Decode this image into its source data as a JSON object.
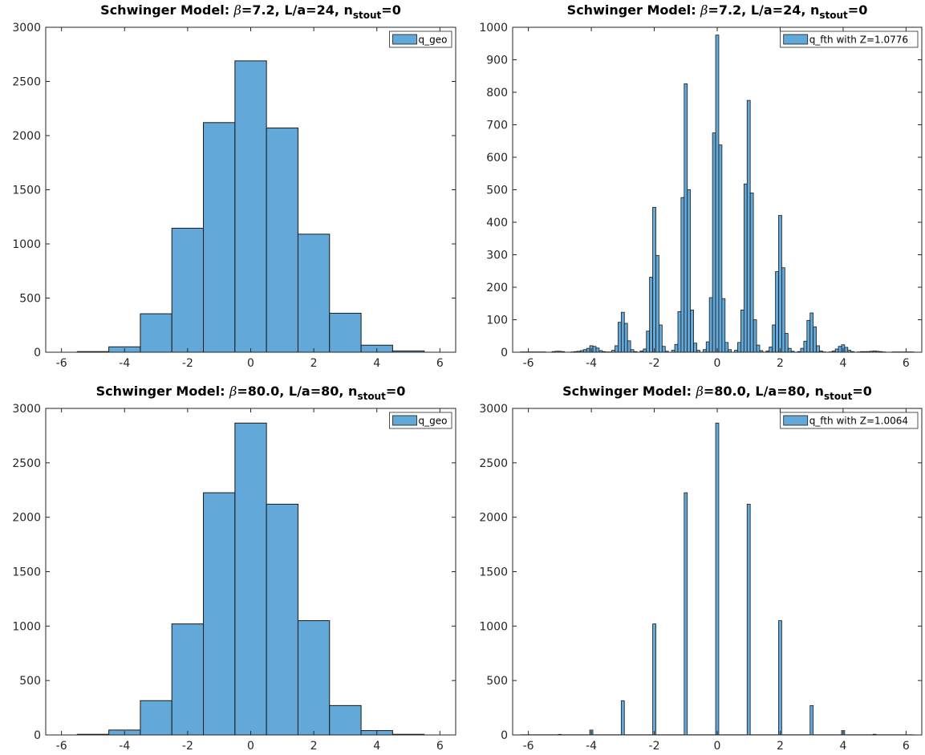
{
  "colors": {
    "bar_fill": "#62A8D8",
    "bar_edge": "#1a1a1a",
    "axis": "#262626",
    "background": "#ffffff"
  },
  "chart_data": [
    {
      "type": "bar",
      "title": {
        "prefix": "Schwinger Model: ",
        "greek": "β",
        "mid": "=7.2, L/a=24, n",
        "sub": "stout",
        "suffix": "=0"
      },
      "legend": "q_geo",
      "legend_position": "top-right",
      "xlim": [
        -6.5,
        6.5
      ],
      "ylim": [
        0,
        3000
      ],
      "xticks": [
        -6,
        -4,
        -2,
        0,
        2,
        4,
        6
      ],
      "yticks": [
        0,
        500,
        1000,
        1500,
        2000,
        2500,
        3000
      ],
      "bin_width": 1,
      "bin_centers": [
        -5,
        -4,
        -3,
        -2,
        -1,
        0,
        1,
        2,
        3,
        4,
        5
      ],
      "values": [
        6,
        50,
        355,
        1145,
        2120,
        2690,
        2070,
        1090,
        360,
        65,
        12
      ]
    },
    {
      "type": "bar",
      "title": {
        "prefix": "Schwinger Model: ",
        "greek": "β",
        "mid": "=7.2, L/a=24, n",
        "sub": "stout",
        "suffix": "=0"
      },
      "legend": "q_fth with Z=1.0776",
      "legend_position": "top-right",
      "xlim": [
        -6.5,
        6.5
      ],
      "ylim": [
        0,
        1000
      ],
      "xticks": [
        -6,
        -4,
        -2,
        0,
        2,
        4,
        6
      ],
      "yticks": [
        0,
        100,
        200,
        300,
        400,
        500,
        600,
        700,
        800,
        900,
        1000
      ],
      "bin_width": 0.1,
      "bins": [
        [
          -6.2,
          1
        ],
        [
          -6.1,
          1
        ],
        [
          -6.0,
          1
        ],
        [
          -5.9,
          1
        ],
        [
          -5.8,
          1
        ],
        [
          -5.7,
          1
        ],
        [
          -5.6,
          1
        ],
        [
          -5.5,
          1
        ],
        [
          -5.2,
          2
        ],
        [
          -5.1,
          3
        ],
        [
          -5.0,
          3
        ],
        [
          -4.9,
          2
        ],
        [
          -4.6,
          1
        ],
        [
          -4.5,
          2
        ],
        [
          -4.4,
          3
        ],
        [
          -4.3,
          5
        ],
        [
          -4.2,
          8
        ],
        [
          -4.1,
          12
        ],
        [
          -4.0,
          20
        ],
        [
          -3.9,
          18
        ],
        [
          -3.8,
          13
        ],
        [
          -3.7,
          5
        ],
        [
          -3.6,
          2
        ],
        [
          -3.5,
          1
        ],
        [
          -3.4,
          1
        ],
        [
          -3.3,
          6
        ],
        [
          -3.2,
          20
        ],
        [
          -3.1,
          92
        ],
        [
          -3.0,
          123
        ],
        [
          -2.9,
          89
        ],
        [
          -2.8,
          35
        ],
        [
          -2.7,
          8
        ],
        [
          -2.6,
          2
        ],
        [
          -2.4,
          4
        ],
        [
          -2.3,
          10
        ],
        [
          -2.2,
          65
        ],
        [
          -2.1,
          231
        ],
        [
          -2.0,
          446
        ],
        [
          -1.9,
          298
        ],
        [
          -1.8,
          84
        ],
        [
          -1.7,
          18
        ],
        [
          -1.6,
          3
        ],
        [
          -1.4,
          6
        ],
        [
          -1.3,
          24
        ],
        [
          -1.2,
          125
        ],
        [
          -1.1,
          476
        ],
        [
          -1.0,
          826
        ],
        [
          -0.9,
          500
        ],
        [
          -0.8,
          130
        ],
        [
          -0.7,
          28
        ],
        [
          -0.6,
          6
        ],
        [
          -0.4,
          8
        ],
        [
          -0.3,
          32
        ],
        [
          -0.2,
          168
        ],
        [
          -0.1,
          675
        ],
        [
          0.0,
          976
        ],
        [
          0.1,
          638
        ],
        [
          0.2,
          165
        ],
        [
          0.3,
          30
        ],
        [
          0.4,
          8
        ],
        [
          0.6,
          6
        ],
        [
          0.7,
          30
        ],
        [
          0.8,
          130
        ],
        [
          0.9,
          518
        ],
        [
          1.0,
          775
        ],
        [
          1.1,
          490
        ],
        [
          1.2,
          100
        ],
        [
          1.3,
          22
        ],
        [
          1.4,
          5
        ],
        [
          1.6,
          4
        ],
        [
          1.7,
          16
        ],
        [
          1.8,
          84
        ],
        [
          1.9,
          248
        ],
        [
          2.0,
          421
        ],
        [
          2.1,
          260
        ],
        [
          2.2,
          58
        ],
        [
          2.3,
          12
        ],
        [
          2.4,
          3
        ],
        [
          2.6,
          2
        ],
        [
          2.7,
          12
        ],
        [
          2.8,
          34
        ],
        [
          2.9,
          98
        ],
        [
          3.0,
          121
        ],
        [
          3.1,
          78
        ],
        [
          3.2,
          20
        ],
        [
          3.3,
          4
        ],
        [
          3.4,
          1
        ],
        [
          3.6,
          1
        ],
        [
          3.7,
          4
        ],
        [
          3.8,
          10
        ],
        [
          3.9,
          18
        ],
        [
          4.0,
          23
        ],
        [
          4.1,
          15
        ],
        [
          4.2,
          6
        ],
        [
          4.3,
          2
        ],
        [
          4.5,
          1
        ],
        [
          4.6,
          2
        ],
        [
          4.7,
          2
        ],
        [
          4.8,
          2
        ],
        [
          4.9,
          3
        ],
        [
          5.0,
          4
        ],
        [
          5.1,
          3
        ],
        [
          5.2,
          2
        ],
        [
          5.3,
          1
        ],
        [
          5.6,
          1
        ],
        [
          5.7,
          1
        ],
        [
          5.8,
          1
        ],
        [
          5.9,
          1
        ],
        [
          6.0,
          1
        ],
        [
          6.1,
          1
        ],
        [
          6.2,
          1
        ]
      ]
    },
    {
      "type": "bar",
      "title": {
        "prefix": "Schwinger Model: ",
        "greek": "β",
        "mid": "=80.0, L/a=80, n",
        "sub": "stout",
        "suffix": "=0"
      },
      "legend": "q_geo",
      "legend_position": "top-right",
      "xlim": [
        -6.5,
        6.5
      ],
      "ylim": [
        0,
        3000
      ],
      "xticks": [
        -6,
        -4,
        -2,
        0,
        2,
        4,
        6
      ],
      "yticks": [
        0,
        500,
        1000,
        1500,
        2000,
        2500,
        3000
      ],
      "bin_width": 1,
      "bin_centers": [
        -5,
        -4,
        -3,
        -2,
        -1,
        0,
        1,
        2,
        3,
        4,
        5
      ],
      "values": [
        6,
        45,
        315,
        1020,
        2225,
        2865,
        2120,
        1050,
        270,
        40,
        6
      ]
    },
    {
      "type": "bar",
      "title": {
        "prefix": "Schwinger Model: ",
        "greek": "β",
        "mid": "=80.0, L/a=80, n",
        "sub": "stout",
        "suffix": "=0"
      },
      "legend": "q_fth with Z=1.0064",
      "legend_position": "top-right",
      "xlim": [
        -6.5,
        6.5
      ],
      "ylim": [
        0,
        3000
      ],
      "xticks": [
        -6,
        -4,
        -2,
        0,
        2,
        4,
        6
      ],
      "yticks": [
        0,
        500,
        1000,
        1500,
        2000,
        2500,
        3000
      ],
      "bin_width": 0.1,
      "bins": [
        [
          -6.2,
          2
        ],
        [
          -6.1,
          2
        ],
        [
          -6.0,
          2
        ],
        [
          -5.9,
          2
        ],
        [
          -5.8,
          2
        ],
        [
          -5.7,
          2
        ],
        [
          -5.6,
          2
        ],
        [
          -5.5,
          2
        ],
        [
          -5.4,
          2
        ],
        [
          -5.3,
          2
        ],
        [
          -5.2,
          2
        ],
        [
          -5.1,
          2
        ],
        [
          -5.0,
          5
        ],
        [
          -4.9,
          2
        ],
        [
          -4.8,
          2
        ],
        [
          -4.7,
          2
        ],
        [
          -4.6,
          2
        ],
        [
          -4.5,
          2
        ],
        [
          -4.4,
          2
        ],
        [
          -4.3,
          2
        ],
        [
          -4.2,
          2
        ],
        [
          -4.1,
          2
        ],
        [
          -4.0,
          45
        ],
        [
          -3.9,
          2
        ],
        [
          -3.8,
          2
        ],
        [
          -3.7,
          2
        ],
        [
          -3.6,
          2
        ],
        [
          -3.5,
          2
        ],
        [
          -3.4,
          2
        ],
        [
          -3.3,
          2
        ],
        [
          -3.2,
          2
        ],
        [
          -3.1,
          2
        ],
        [
          -3.0,
          315
        ],
        [
          -2.9,
          2
        ],
        [
          -2.8,
          2
        ],
        [
          -2.7,
          2
        ],
        [
          -2.6,
          2
        ],
        [
          -2.5,
          2
        ],
        [
          -2.4,
          2
        ],
        [
          -2.3,
          2
        ],
        [
          -2.2,
          2
        ],
        [
          -2.1,
          2
        ],
        [
          -2.0,
          1020
        ],
        [
          -1.9,
          2
        ],
        [
          -1.8,
          2
        ],
        [
          -1.7,
          2
        ],
        [
          -1.6,
          2
        ],
        [
          -1.5,
          2
        ],
        [
          -1.4,
          2
        ],
        [
          -1.3,
          2
        ],
        [
          -1.2,
          2
        ],
        [
          -1.1,
          2
        ],
        [
          -1.0,
          2225
        ],
        [
          -0.9,
          2
        ],
        [
          -0.8,
          2
        ],
        [
          -0.7,
          2
        ],
        [
          -0.6,
          2
        ],
        [
          -0.5,
          2
        ],
        [
          -0.4,
          2
        ],
        [
          -0.3,
          2
        ],
        [
          -0.2,
          2
        ],
        [
          -0.1,
          2
        ],
        [
          0.0,
          2865
        ],
        [
          0.1,
          2
        ],
        [
          0.2,
          2
        ],
        [
          0.3,
          2
        ],
        [
          0.4,
          2
        ],
        [
          0.5,
          2
        ],
        [
          0.6,
          2
        ],
        [
          0.7,
          2
        ],
        [
          0.8,
          2
        ],
        [
          0.9,
          2
        ],
        [
          1.0,
          2120
        ],
        [
          1.1,
          2
        ],
        [
          1.2,
          2
        ],
        [
          1.3,
          2
        ],
        [
          1.4,
          2
        ],
        [
          1.5,
          2
        ],
        [
          1.6,
          2
        ],
        [
          1.7,
          2
        ],
        [
          1.8,
          2
        ],
        [
          1.9,
          2
        ],
        [
          2.0,
          1050
        ],
        [
          2.1,
          2
        ],
        [
          2.2,
          2
        ],
        [
          2.3,
          2
        ],
        [
          2.4,
          2
        ],
        [
          2.5,
          2
        ],
        [
          2.6,
          2
        ],
        [
          2.7,
          2
        ],
        [
          2.8,
          2
        ],
        [
          2.9,
          2
        ],
        [
          3.0,
          270
        ],
        [
          3.1,
          2
        ],
        [
          3.2,
          2
        ],
        [
          3.3,
          2
        ],
        [
          3.4,
          2
        ],
        [
          3.5,
          2
        ],
        [
          3.6,
          2
        ],
        [
          3.7,
          2
        ],
        [
          3.8,
          2
        ],
        [
          3.9,
          2
        ],
        [
          4.0,
          40
        ],
        [
          4.1,
          2
        ],
        [
          4.2,
          2
        ],
        [
          4.3,
          2
        ],
        [
          4.4,
          2
        ],
        [
          4.5,
          2
        ],
        [
          4.6,
          2
        ],
        [
          4.7,
          2
        ],
        [
          4.8,
          2
        ],
        [
          4.9,
          2
        ],
        [
          5.0,
          6
        ],
        [
          5.1,
          2
        ],
        [
          5.2,
          2
        ],
        [
          5.3,
          2
        ],
        [
          5.4,
          2
        ],
        [
          5.5,
          2
        ],
        [
          5.6,
          2
        ],
        [
          5.7,
          2
        ],
        [
          5.8,
          2
        ],
        [
          5.9,
          2
        ],
        [
          6.0,
          2
        ],
        [
          6.1,
          2
        ],
        [
          6.2,
          2
        ]
      ]
    }
  ]
}
